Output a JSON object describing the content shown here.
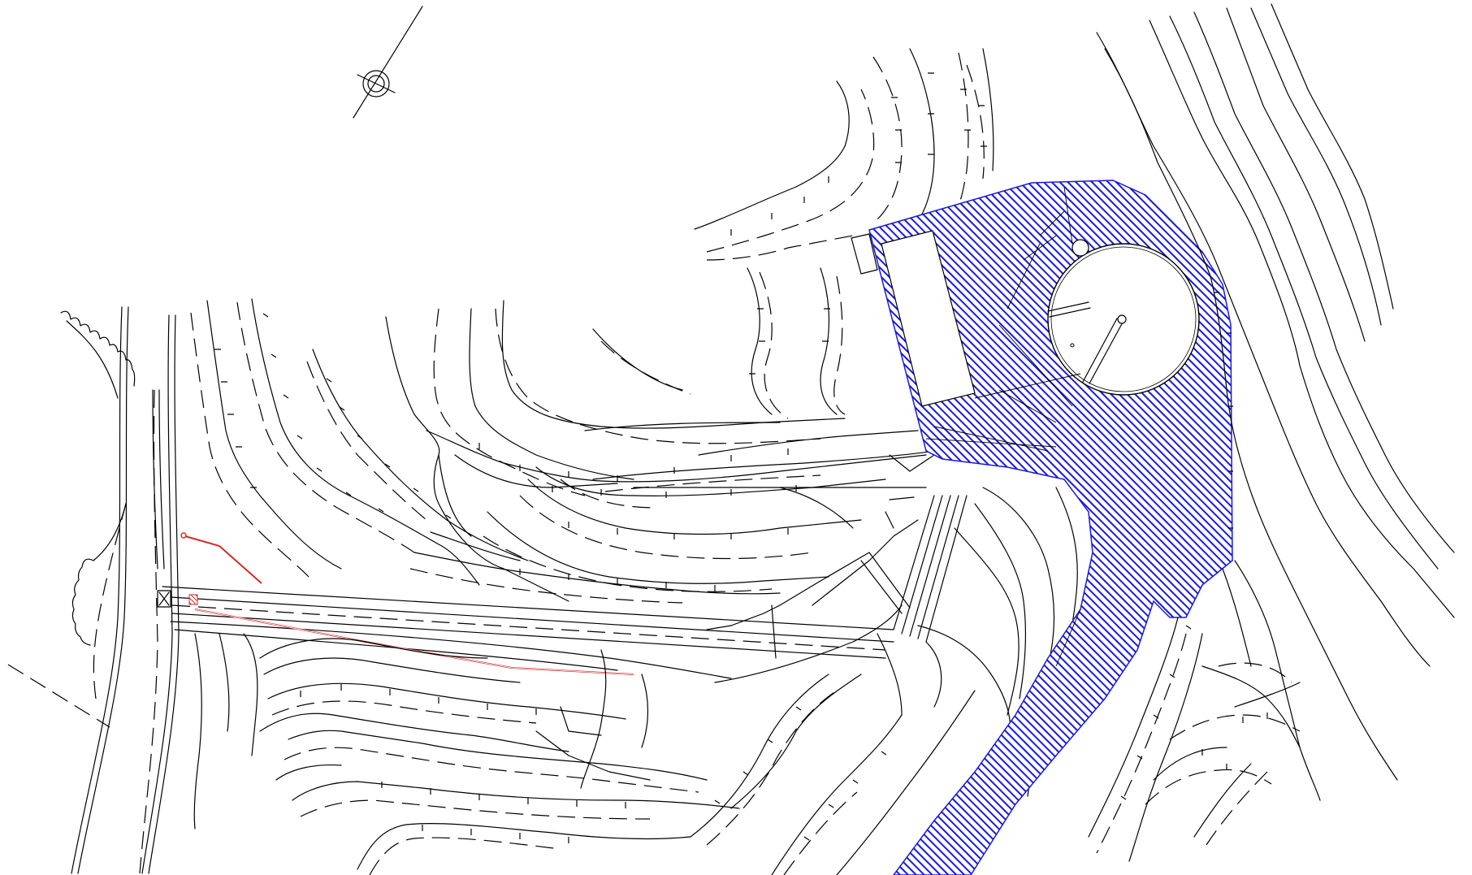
{
  "colors": {
    "background": "#ffffff",
    "linework": "#000000",
    "hatch": "#1a1adb",
    "pipe": "#d42a2a"
  },
  "legend": [],
  "annotations": []
}
